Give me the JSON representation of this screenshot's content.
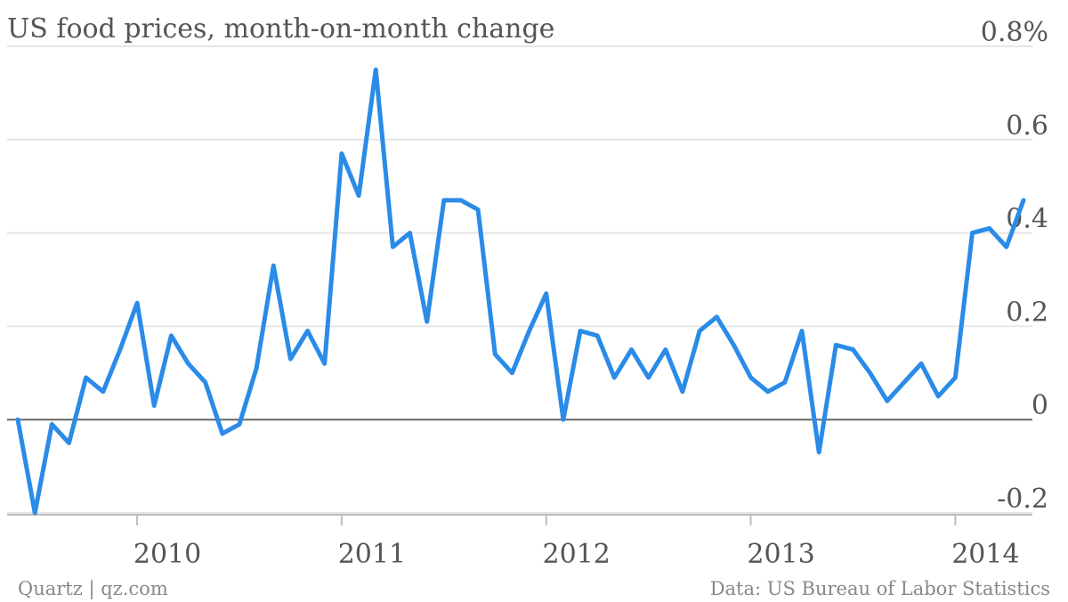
{
  "title": "US food prices, month-on-month change",
  "source": "Data: US Bureau of Labor Statistics",
  "credit": "Quartz | qz.com",
  "colors": {
    "series": "#2a8be8"
  },
  "chart_data": {
    "type": "line",
    "title": "US food prices, month-on-month change",
    "xlabel": "",
    "ylabel": "",
    "y_unit": "%",
    "ylim": [
      -0.2,
      0.8
    ],
    "yticks": [
      {
        "value": -0.2,
        "label": "-0.2"
      },
      {
        "value": 0,
        "label": "0"
      },
      {
        "value": 0.2,
        "label": "0.2"
      },
      {
        "value": 0.4,
        "label": "0.4"
      },
      {
        "value": 0.6,
        "label": "0.6"
      },
      {
        "value": 0.8,
        "label": "0.8%"
      }
    ],
    "xticks": [
      "2010",
      "2011",
      "2012",
      "2013",
      "2014"
    ],
    "grid": true,
    "x": [
      "2009-06",
      "2009-07",
      "2009-08",
      "2009-09",
      "2009-10",
      "2009-11",
      "2009-12",
      "2010-01",
      "2010-02",
      "2010-03",
      "2010-04",
      "2010-05",
      "2010-06",
      "2010-07",
      "2010-08",
      "2010-09",
      "2010-10",
      "2010-11",
      "2010-12",
      "2011-01",
      "2011-02",
      "2011-03",
      "2011-04",
      "2011-05",
      "2011-06",
      "2011-07",
      "2011-08",
      "2011-09",
      "2011-10",
      "2011-11",
      "2011-12",
      "2012-01",
      "2012-02",
      "2012-03",
      "2012-04",
      "2012-05",
      "2012-06",
      "2012-07",
      "2012-08",
      "2012-09",
      "2012-10",
      "2012-11",
      "2012-12",
      "2013-01",
      "2013-02",
      "2013-03",
      "2013-04",
      "2013-05",
      "2013-06",
      "2013-07",
      "2013-08",
      "2013-09",
      "2013-10",
      "2013-11",
      "2013-12",
      "2014-01",
      "2014-02",
      "2014-03",
      "2014-04",
      "2014-05"
    ],
    "series": [
      {
        "values": [
          0.0,
          -0.2,
          -0.01,
          -0.05,
          0.09,
          0.06,
          0.15,
          0.25,
          0.03,
          0.18,
          0.12,
          0.08,
          -0.03,
          -0.01,
          0.11,
          0.33,
          0.13,
          0.19,
          0.12,
          0.57,
          0.48,
          0.75,
          0.37,
          0.4,
          0.21,
          0.47,
          0.47,
          0.45,
          0.14,
          0.1,
          0.19,
          0.27,
          0.0,
          0.19,
          0.18,
          0.09,
          0.15,
          0.09,
          0.15,
          0.06,
          0.19,
          0.22,
          0.16,
          0.09,
          0.06,
          0.08,
          0.19,
          -0.07,
          0.16,
          0.15,
          0.1,
          0.04,
          0.08,
          0.12,
          0.05,
          0.09,
          0.4,
          0.41,
          0.37,
          0.47
        ]
      }
    ]
  }
}
